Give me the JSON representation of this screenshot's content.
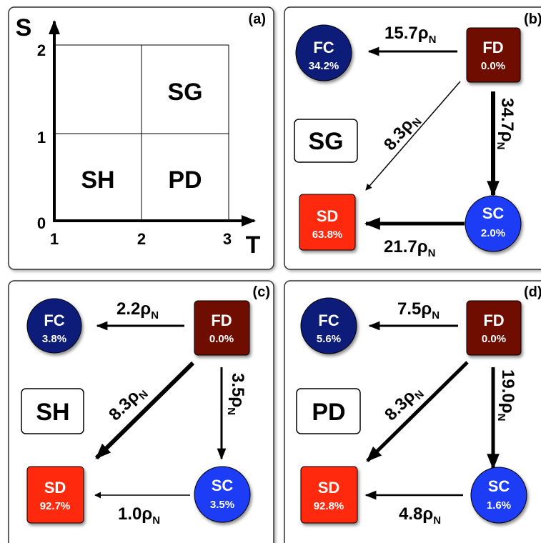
{
  "panel_a": {
    "label": "(a)",
    "y_axis_label": "S",
    "x_axis_label": "T",
    "y_ticks": [
      "2",
      "1",
      "0"
    ],
    "x_ticks": [
      "1",
      "2",
      "3"
    ],
    "regions": {
      "sg": "SG",
      "sh": "SH",
      "pd": "PD"
    }
  },
  "panel_b": {
    "label": "(b)",
    "game": "SG",
    "nodes": {
      "fc": {
        "name": "FC",
        "value": "34.2%"
      },
      "fd": {
        "name": "FD",
        "value": "0.0%"
      },
      "sd": {
        "name": "SD",
        "value": "63.8%"
      },
      "sc": {
        "name": "SC",
        "value": "2.0%"
      }
    },
    "rates": {
      "fd_fc": "15.7",
      "fd_sc": "34.7",
      "fd_sd": "8.3",
      "sc_sd": "21.7"
    }
  },
  "panel_c": {
    "label": "(c)",
    "game": "SH",
    "nodes": {
      "fc": {
        "name": "FC",
        "value": "3.8%"
      },
      "fd": {
        "name": "FD",
        "value": "0.0%"
      },
      "sd": {
        "name": "SD",
        "value": "92.7%"
      },
      "sc": {
        "name": "SC",
        "value": "3.5%"
      }
    },
    "rates": {
      "fd_fc": "2.2",
      "fd_sc": "3.5",
      "fd_sd": "8.3",
      "sc_sd": "1.0"
    }
  },
  "panel_d": {
    "label": "(d)",
    "game": "PD",
    "nodes": {
      "fc": {
        "name": "FC",
        "value": "5.6%"
      },
      "fd": {
        "name": "FD",
        "value": "0.0%"
      },
      "sd": {
        "name": "SD",
        "value": "92.8%"
      },
      "sc": {
        "name": "SC",
        "value": "1.6%"
      }
    },
    "rates": {
      "fd_fc": "7.5",
      "fd_sc": "19.0",
      "fd_sd": "8.3",
      "sc_sd": "4.8"
    }
  },
  "rate_symbol": "ρ",
  "rate_subscript": "N",
  "colors": {
    "fc": "#0b1f78",
    "fd": "#6e0a05",
    "sd": "#ff2a0a",
    "sc": "#1e3cf5"
  }
}
